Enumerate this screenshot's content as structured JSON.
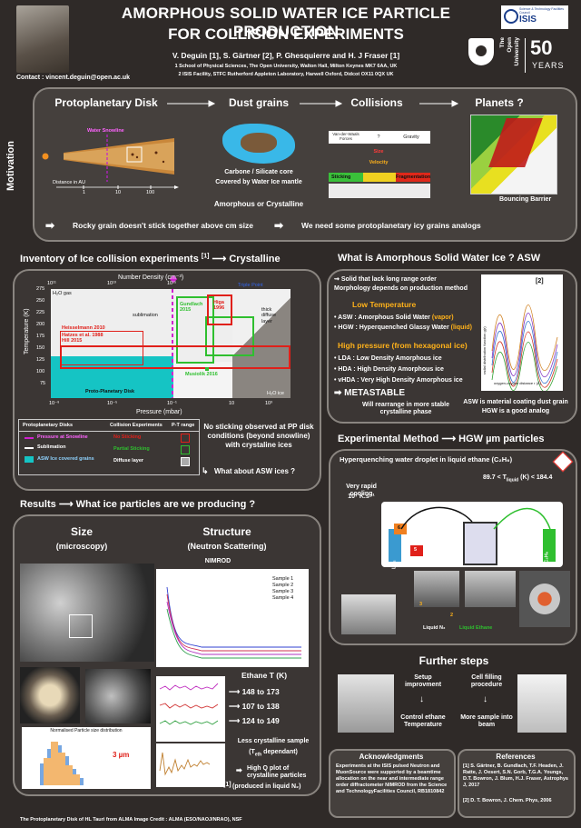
{
  "header": {
    "title_line1": "AMORPHOUS SOLID WATER ICE PARTICLE PRODUCTION",
    "title_line2": "FOR COLLISION EXPERIMENTS",
    "authors": "V. Deguin [1], S. Gärtner [2], P. Ghesquierre and H. J Fraser [1]",
    "aff1": "1 School of Physical Sciences, The Open University, Walton Hall, Milton Keynes MK7 6AA, UK",
    "aff2": "2 ISIS Facility, STFC Rutherford Appleton Laboratory, Harwell Oxford, Didcot OX11 0QX UK",
    "contact": "Contact : vincent.deguin@open.ac.uk",
    "isis_logo": "ISIS",
    "isis_sub": "Science & Technology Facilities Council",
    "ou_line1": "The",
    "ou_line2": "Open",
    "ou_line3": "University",
    "ou_years_num": "50",
    "ou_years": "YEARS"
  },
  "motivation": {
    "side_label": "Motivation",
    "col1": "Protoplanetary Disk",
    "col2": "Dust grains",
    "col3": "Collisions",
    "col4": "Planets ?",
    "water_snowline": "Water Snowline",
    "distance": "Distance in AU",
    "ticks": [
      "1",
      "10",
      "100"
    ],
    "grain_l1": "Carbone / Silicate core",
    "grain_l2": "Covered by Water Ice mantle",
    "grain_l3": "Amorphous or Crystalline",
    "vdw": "Van-der-Waals Forces",
    "q": "?",
    "gravity": "Gravity",
    "size": "Size",
    "velocity": "Velocity",
    "sticking": "Sticking",
    "fragmentation": "Fragmentation",
    "bouncing": "Bouncing Barrier",
    "bottom1": "Rocky grain doesn't stick together above cm size",
    "bottom2": "We need some protoplanetary icy grains analogs"
  },
  "inventory": {
    "title": "Inventory of Ice collision experiments",
    "ref": "[1]",
    "title2": "Crystalline",
    "numdens": "Number Density (cm⁻³)",
    "temp": "Temperature (K)",
    "pressure": "Pressure (mbar)",
    "h2o_gas": "H₂O gas",
    "h2o_ice": "H₂O ice",
    "sublimation": "sublimation",
    "triple": "Triple Point",
    "thick": "thick diffuse layer",
    "ppdisk": "Proto-Planetary Disk",
    "top_ticks": [
      "10¹¹",
      "10¹³",
      "10¹⁵"
    ],
    "left_ticks": [
      "275",
      "250",
      "225",
      "200",
      "175",
      "150",
      "125",
      "100",
      "75"
    ],
    "bottom_ticks": [
      "10⁻⁹",
      "10⁻⁵",
      "10⁻¹",
      "10",
      "10³"
    ],
    "exp1": "Hatzes et al. 1988",
    "exp2": "Heisselmann 2010",
    "exp3": "Hill 2015",
    "exp4": "Gundlach 2015",
    "exp5": "Higa 1996",
    "exp6": "Musiolik 2016",
    "legend_pp": "Protoplanetary Disks",
    "legend_ce": "Collision Experiments",
    "legend_pt": "P-T range",
    "lg1": "Pressure at Snowline",
    "lg2": "Sublimation",
    "lg3": "ASW Ice covered grains",
    "lg4": "No Sticking",
    "lg5": "Partial Sticking",
    "lg6": "Diffuse layer",
    "note": "No sticking observed at PP disk conditions (beyond snowline) with crystaline ices",
    "what": "What about ASW ices ?"
  },
  "asw": {
    "title": "What is Amorphous Solid Water Ice ?",
    "title2": "ASW",
    "l1": "Solid that lack long range order",
    "l2": "Morphology depends on production method",
    "low": "Low Temperature",
    "a1": "ASW : Amorphous Solid Water",
    "a1b": "(vapor)",
    "a2": "HGW : Hyperquenched Glassy Water",
    "a2b": "(liquid)",
    "high": "High pressure (from hexagonal ice)",
    "b1": "LDA : Low Density Amorphous ice",
    "b2": "HDA : High Density Amorphous ice",
    "b3": "vHDA : Very High Density Amorphous ice",
    "meta": "METASTABLE",
    "rearr": "Will rearrange in more stable crystalline phase",
    "ref": "[2]",
    "plot_x": "oxygen-oxygen distance r (Å)",
    "plot_y": "radial distribution function g(r)",
    "foot1": "ASW is material coating dust grain",
    "foot2": "HGW is a good analog"
  },
  "method": {
    "title": "Experimental Method",
    "title2": "HGW µm particles",
    "hyper": "Hyperquenching water droplet in liquid ethane (C₂H₆)",
    "rapid1": "Very rapid cooling",
    "rapid2": "10⁷ K.s⁻¹",
    "range": "89.7 < T",
    "range_sub": "liquid",
    "range2": " (K) < 184.4",
    "n1": "1",
    "n2": "2",
    "n3": "3",
    "n4": "4",
    "n5": "5",
    "n6": "6",
    "ln2": "LN₂",
    "n2gas": "N₂",
    "c2h6": "C₂H₆",
    "liq_n2": "Liquid N₂",
    "liq_eth": "Liquid Ethane"
  },
  "results": {
    "title": "Results",
    "title2": "What ice particles are we producing ?",
    "size": "Size",
    "size_sub": "(microscopy)",
    "structure": "Structure",
    "structure_sub": "(Neutron Scattering)",
    "nimrod": "NIMROD",
    "dist_title": "Normalised Particle size distribution",
    "three_um": "3 µm",
    "legend_samples": [
      "Sample 1",
      "Sample 2",
      "Sample 3",
      "Sample 4"
    ],
    "ethane": "Ethane T (K)",
    "r1": "148 to 173",
    "r2": "107 to 138",
    "r3": "124 to 149",
    "less": "Less crystalline sample",
    "less2": "(T",
    "less2sub": "eth",
    "less2b": " dependant)",
    "highq": "High Q plot of crystalline particles",
    "highq2": "(produced in liquid N₂)",
    "ref": "[1]"
  },
  "further": {
    "title": "Further steps",
    "s1": "Setup improvment",
    "s2": "Cell filling procedure",
    "s3": "Control ethane Temperature",
    "s4": "More sample into beam"
  },
  "ack": {
    "title": "Acknowledgments",
    "text": "Experiments at the ISIS pulsed Neutron and MuonSource were supported by a beamtime allocation on the near and intermediate range order diffractometer NIMROD from the Science and TechnologyFacilities Council, RB1810842"
  },
  "refs": {
    "title": "References",
    "r1": "[1] S. Gärtner, B. Gundlach, T.F. Headen, J. Ratte, J. Oesert, S.N. Gorb, T.G.A. Youngs, D.T. Bowron, J. Blum, H.J. Fraser, Astrophys J, 2017",
    "r2": "[2] D. T. Bowron, J. Chem. Phys, 2006"
  },
  "footer": "The Protoplanetary Disk of HL Tauri from ALMA Image Credit : ALMA (ESO/NAOJ/NRAO), NSF",
  "colors": {
    "accent": "#ffb21a",
    "blue": "#8fd3ff",
    "red": "#e0201a",
    "green": "#2fbf2f",
    "cyan": "#15c4c4",
    "magenta": "#d020d0"
  }
}
